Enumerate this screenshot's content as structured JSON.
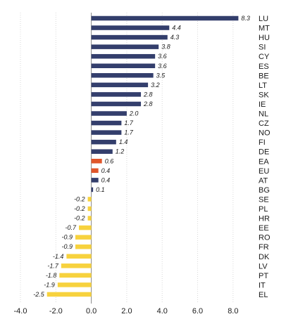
{
  "chart_data": {
    "type": "bar",
    "orientation": "horizontal",
    "title": "",
    "xlabel": "",
    "ylabel": "",
    "xlim": [
      -4.0,
      9.0
    ],
    "x_ticks": [
      -4.0,
      -2.0,
      0.0,
      2.0,
      4.0,
      6.0,
      8.0
    ],
    "x_tick_labels": [
      "-4.0",
      "-2.0",
      "0.0",
      "2.0",
      "4.0",
      "6.0",
      "8.0"
    ],
    "grid": "vertical",
    "colors": {
      "positive": "#333e6c",
      "aggregate": "#e0562a",
      "negative": "#f7d23e"
    },
    "categories": [
      "LU",
      "MT",
      "HU",
      "SI",
      "CY",
      "ES",
      "BE",
      "LT",
      "SK",
      "IE",
      "NL",
      "CZ",
      "NO",
      "FI",
      "DE",
      "EA",
      "EU",
      "AT",
      "BG",
      "SE",
      "PL",
      "HR",
      "EE",
      "RO",
      "FR",
      "DK",
      "LV",
      "PT",
      "IT",
      "EL"
    ],
    "values": [
      8.3,
      4.4,
      4.3,
      3.8,
      3.6,
      3.6,
      3.5,
      3.2,
      2.8,
      2.8,
      2.0,
      1.7,
      1.7,
      1.4,
      1.2,
      0.6,
      0.4,
      0.4,
      0.1,
      -0.2,
      -0.2,
      -0.2,
      -0.7,
      -0.9,
      -0.9,
      -1.4,
      -1.7,
      -1.8,
      -1.9,
      -2.5
    ],
    "value_labels": [
      "8.3",
      "4.4",
      "4.3",
      "3.8",
      "3.6",
      "3.6",
      "3.5",
      "3.2",
      "2.8",
      "2.8",
      "2.0",
      "1.7",
      "1.7",
      "1.4",
      "1.2",
      "0.6",
      "0.4",
      "0.4",
      "0.1",
      "-0.2",
      "-0.2",
      "-0.2",
      "-0.7",
      "-0.9",
      "-0.9",
      "-1.4",
      "-1.7",
      "-1.8",
      "-1.9",
      "-2.5"
    ],
    "highlighted": [
      "EA",
      "EU"
    ]
  }
}
